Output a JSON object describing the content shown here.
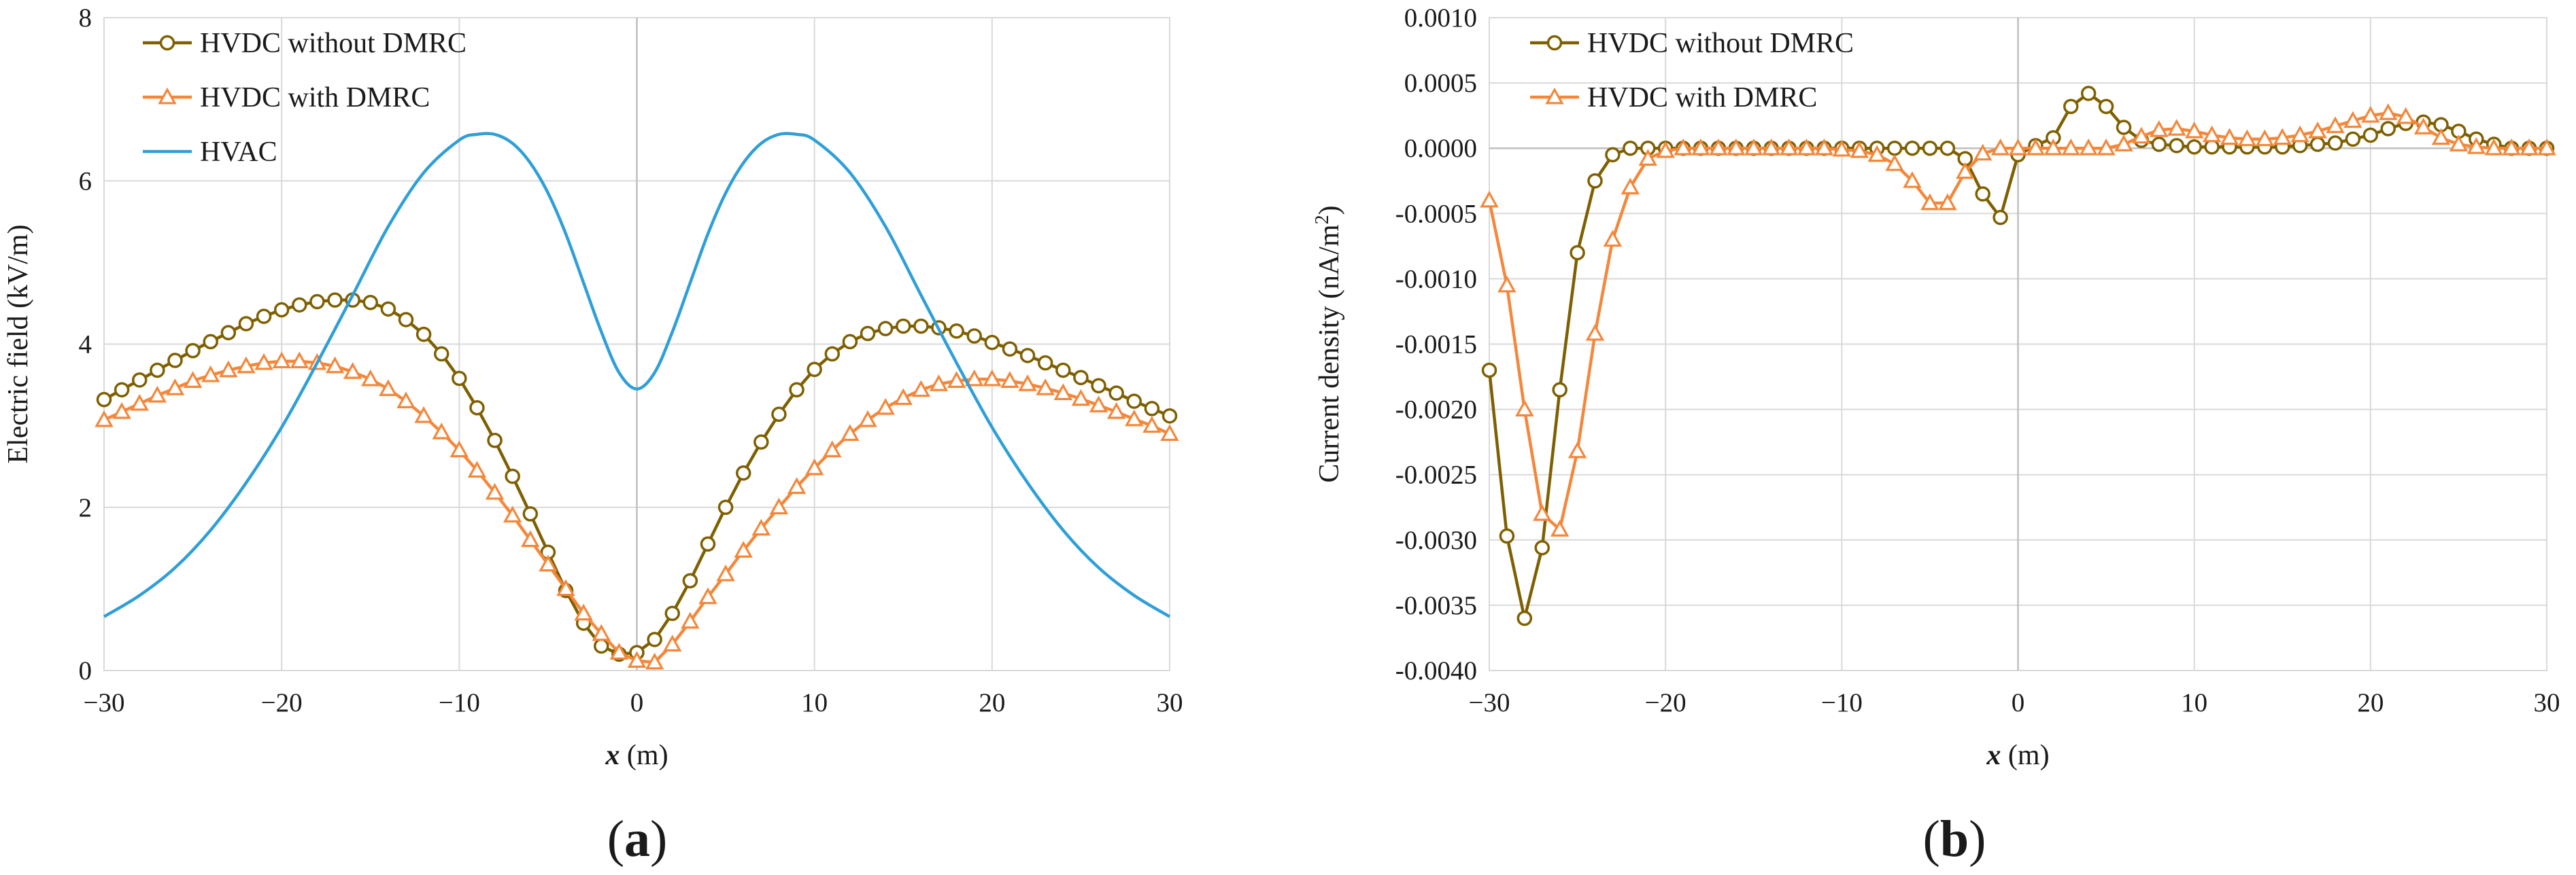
{
  "figure": {
    "panels": [
      {
        "label_open": "(",
        "label_letter": "a",
        "label_close": ")"
      },
      {
        "label_open": "(",
        "label_letter": "b",
        "label_close": ")"
      }
    ]
  },
  "chart_data": [
    {
      "type": "line",
      "panel": "a",
      "title": "",
      "xlabel_symbol": "x",
      "xlabel_unit": " (m)",
      "ylabel": "Electric field (kV/m)",
      "xlim": [
        -30,
        30
      ],
      "ylim": [
        0,
        8
      ],
      "xticks": [
        -30,
        -20,
        -10,
        0,
        10,
        20,
        30
      ],
      "xtick_labels": [
        "−30",
        "−20",
        "−10",
        "0",
        "10",
        "20",
        "30"
      ],
      "yticks": [
        0,
        2,
        4,
        6,
        8
      ],
      "ytick_labels": [
        "0",
        "2",
        "4",
        "6",
        "8"
      ],
      "grid": true,
      "legend_position": "top-left",
      "series": [
        {
          "name": "HVDC without DMRC",
          "color": "#7f6000",
          "marker": "circle",
          "x": [
            -30,
            -29,
            -28,
            -27,
            -26,
            -25,
            -24,
            -23,
            -22,
            -21,
            -20,
            -19,
            -18,
            -17,
            -16,
            -15,
            -14,
            -13,
            -12,
            -11,
            -10,
            -9,
            -8,
            -7,
            -6,
            -5,
            -4,
            -3,
            -2,
            -1,
            0,
            1,
            2,
            3,
            4,
            5,
            6,
            7,
            8,
            9,
            10,
            11,
            12,
            13,
            14,
            15,
            16,
            17,
            18,
            19,
            20,
            21,
            22,
            23,
            24,
            25,
            26,
            27,
            28,
            29,
            30
          ],
          "values": [
            3.32,
            3.44,
            3.56,
            3.68,
            3.8,
            3.92,
            4.03,
            4.14,
            4.25,
            4.34,
            4.42,
            4.48,
            4.52,
            4.54,
            4.54,
            4.51,
            4.43,
            4.3,
            4.12,
            3.88,
            3.58,
            3.22,
            2.82,
            2.38,
            1.92,
            1.45,
            0.98,
            0.58,
            0.3,
            0.2,
            0.22,
            0.38,
            0.7,
            1.1,
            1.55,
            2.0,
            2.42,
            2.8,
            3.14,
            3.44,
            3.69,
            3.88,
            4.03,
            4.13,
            4.19,
            4.22,
            4.22,
            4.2,
            4.16,
            4.1,
            4.02,
            3.94,
            3.86,
            3.77,
            3.68,
            3.59,
            3.49,
            3.4,
            3.3,
            3.21,
            3.12
          ]
        },
        {
          "name": "HVDC with DMRC",
          "color": "#f4873a",
          "marker": "triangle",
          "x": [
            -30,
            -29,
            -28,
            -27,
            -26,
            -25,
            -24,
            -23,
            -22,
            -21,
            -20,
            -19,
            -18,
            -17,
            -16,
            -15,
            -14,
            -13,
            -12,
            -11,
            -10,
            -9,
            -8,
            -7,
            -6,
            -5,
            -4,
            -3,
            -2,
            -1,
            0,
            1,
            2,
            3,
            4,
            5,
            6,
            7,
            8,
            9,
            10,
            11,
            12,
            13,
            14,
            15,
            16,
            17,
            18,
            19,
            20,
            21,
            22,
            23,
            24,
            25,
            26,
            27,
            28,
            29,
            30
          ],
          "values": [
            3.07,
            3.17,
            3.27,
            3.37,
            3.46,
            3.55,
            3.62,
            3.68,
            3.73,
            3.77,
            3.79,
            3.79,
            3.77,
            3.73,
            3.66,
            3.57,
            3.45,
            3.3,
            3.12,
            2.92,
            2.7,
            2.45,
            2.18,
            1.9,
            1.6,
            1.3,
            1.0,
            0.7,
            0.45,
            0.22,
            0.12,
            0.1,
            0.32,
            0.6,
            0.9,
            1.18,
            1.47,
            1.74,
            2.0,
            2.25,
            2.48,
            2.7,
            2.9,
            3.07,
            3.22,
            3.34,
            3.44,
            3.51,
            3.55,
            3.57,
            3.57,
            3.55,
            3.51,
            3.46,
            3.4,
            3.33,
            3.25,
            3.17,
            3.08,
            3.0,
            2.9
          ]
        },
        {
          "name": "HVAC",
          "color": "#2e9fd8",
          "marker": "none",
          "x": [
            -30,
            -28,
            -26,
            -24,
            -22,
            -20,
            -18,
            -16,
            -14,
            -12,
            -10,
            -9,
            -8,
            -7,
            -6,
            -5,
            -4,
            -3,
            -2,
            -1,
            0,
            1,
            2,
            3,
            4,
            5,
            6,
            7,
            8,
            9,
            10,
            12,
            14,
            16,
            18,
            20,
            22,
            24,
            26,
            28,
            30
          ],
          "values": [
            0.66,
            0.92,
            1.26,
            1.72,
            2.3,
            2.98,
            3.77,
            4.6,
            5.44,
            6.1,
            6.5,
            6.57,
            6.57,
            6.46,
            6.22,
            5.85,
            5.35,
            4.75,
            4.15,
            3.65,
            3.45,
            3.65,
            4.15,
            4.75,
            5.35,
            5.85,
            6.22,
            6.46,
            6.57,
            6.57,
            6.5,
            6.1,
            5.44,
            4.6,
            3.77,
            2.98,
            2.3,
            1.72,
            1.26,
            0.92,
            0.66
          ]
        }
      ]
    },
    {
      "type": "line",
      "panel": "b",
      "title": "",
      "xlabel_symbol": "x",
      "xlabel_unit": " (m)",
      "ylabel_pre": "Current density (nA/m",
      "ylabel_sup": "2",
      "ylabel_post": ")",
      "xlim": [
        -30,
        30
      ],
      "ylim": [
        -0.004,
        0.001
      ],
      "xticks": [
        -30,
        -20,
        -10,
        0,
        10,
        20,
        30
      ],
      "xtick_labels": [
        "−30",
        "−20",
        "−10",
        "0",
        "10",
        "20",
        "30"
      ],
      "yticks": [
        -0.004,
        -0.0035,
        -0.003,
        -0.0025,
        -0.002,
        -0.0015,
        -0.001,
        -0.0005,
        0,
        0.0005,
        0.001
      ],
      "ytick_labels": [
        "-0.0040",
        "-0.0035",
        "-0.0030",
        "-0.0025",
        "-0.0020",
        "-0.0015",
        "-0.0010",
        "-0.0005",
        "0.0000",
        "0.0005",
        "0.0010"
      ],
      "grid": true,
      "legend_position": "top-left",
      "series": [
        {
          "name": "HVDC without DMRC",
          "color": "#7f6000",
          "marker": "circle",
          "x": [
            -30,
            -29,
            -28,
            -27,
            -26,
            -25,
            -24,
            -23,
            -22,
            -21,
            -20,
            -19,
            -18,
            -17,
            -16,
            -15,
            -14,
            -13,
            -12,
            -11,
            -10,
            -9,
            -8,
            -7,
            -6,
            -5,
            -4,
            -3,
            -2,
            -1,
            0,
            1,
            2,
            3,
            4,
            5,
            6,
            7,
            8,
            9,
            10,
            11,
            12,
            13,
            14,
            15,
            16,
            17,
            18,
            19,
            20,
            21,
            22,
            23,
            24,
            25,
            26,
            27,
            28,
            29,
            30
          ],
          "values": [
            -0.0017,
            -0.00297,
            -0.0036,
            -0.00306,
            -0.00185,
            -0.0008,
            -0.00025,
            -5e-05,
            0.0,
            0.0,
            0.0,
            0.0,
            0.0,
            0.0,
            0.0,
            0.0,
            0.0,
            0.0,
            0.0,
            0.0,
            0.0,
            0.0,
            0.0,
            0.0,
            0.0,
            0.0,
            0.0,
            -8e-05,
            -0.00035,
            -0.00053,
            -5e-05,
            2e-05,
            8e-05,
            0.00032,
            0.00042,
            0.00032,
            0.00016,
            6e-05,
            3e-05,
            2e-05,
            1e-05,
            1e-05,
            1e-05,
            1e-05,
            1e-05,
            1e-05,
            2e-05,
            3e-05,
            4e-05,
            7e-05,
            0.0001,
            0.00015,
            0.00019,
            0.0002,
            0.00018,
            0.00013,
            7e-05,
            3e-05,
            0.0,
            0.0,
            0.0
          ]
        },
        {
          "name": "HVDC with DMRC",
          "color": "#f4873a",
          "marker": "triangle",
          "x": [
            -30,
            -29,
            -28,
            -27,
            -26,
            -25,
            -24,
            -23,
            -22,
            -21,
            -20,
            -19,
            -18,
            -17,
            -16,
            -15,
            -14,
            -13,
            -12,
            -11,
            -10,
            -9,
            -8,
            -7,
            -6,
            -5,
            -4,
            -3,
            -2,
            -1,
            0,
            1,
            2,
            3,
            4,
            5,
            6,
            7,
            8,
            9,
            10,
            11,
            12,
            13,
            14,
            15,
            16,
            17,
            18,
            19,
            20,
            21,
            22,
            23,
            24,
            25,
            26,
            27,
            28,
            29,
            30
          ],
          "values": [
            -0.0004,
            -0.00105,
            -0.002,
            -0.0028,
            -0.00292,
            -0.00232,
            -0.00142,
            -0.0007,
            -0.0003,
            -8e-05,
            -2e-05,
            0.0,
            0.0,
            0.0,
            0.0,
            0.0,
            0.0,
            0.0,
            0.0,
            0.0,
            -1e-05,
            -2e-05,
            -5e-05,
            -0.00012,
            -0.00025,
            -0.00042,
            -0.00042,
            -0.00018,
            -4e-05,
            0.0,
            0.0,
            0.0,
            0.0,
            0.0,
            0.0,
            0.0,
            3e-05,
            9e-05,
            0.00014,
            0.00015,
            0.00013,
            0.0001,
            8e-05,
            7e-05,
            7e-05,
            8e-05,
            0.0001,
            0.00013,
            0.00017,
            0.00021,
            0.00025,
            0.00027,
            0.00024,
            0.00016,
            8e-05,
            3e-05,
            1e-05,
            0.0,
            0.0,
            0.0,
            0.0
          ]
        }
      ]
    }
  ]
}
